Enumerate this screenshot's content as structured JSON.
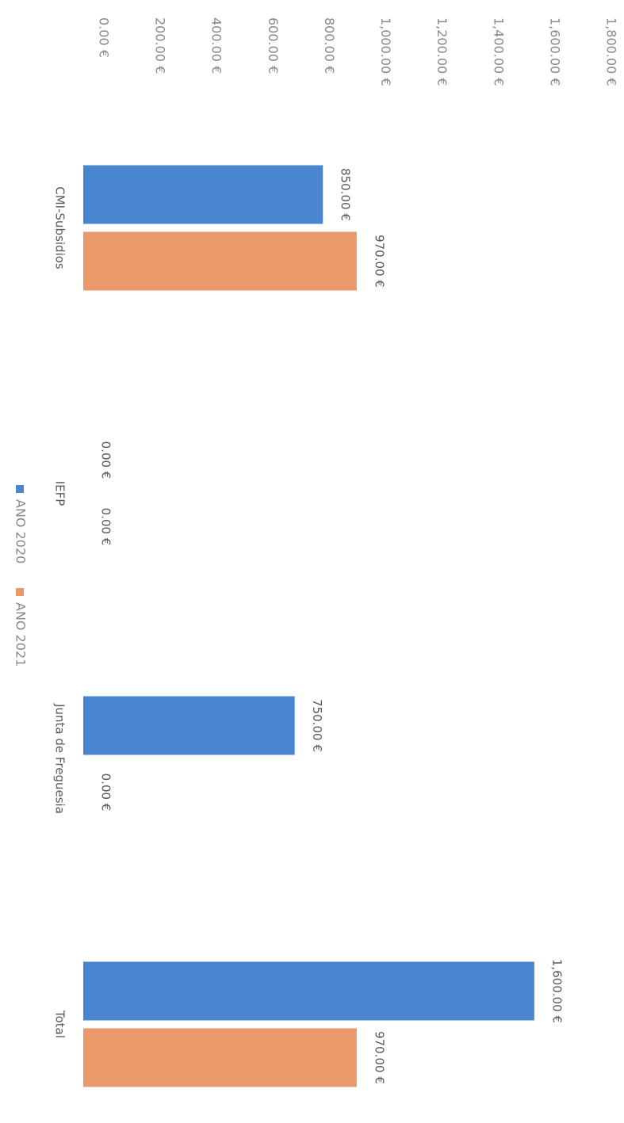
{
  "chart_data": {
    "type": "bar",
    "categories": [
      "CMI-Subsidios",
      "IEFP",
      "Junta de Freguesia",
      "Total"
    ],
    "series": [
      {
        "name": "ANO 2020",
        "color": "#4a86d0",
        "values": [
          850,
          0,
          750,
          1600
        ],
        "value_labels": [
          "850.00 €",
          "0.00 €",
          "750.00 €",
          "1,600.00 €"
        ]
      },
      {
        "name": "ANO 2021",
        "color": "#ea9a6a",
        "values": [
          970,
          0,
          0,
          970
        ],
        "value_labels": [
          "970.00 €",
          "0.00 €",
          "0.00 €",
          "970.00 €"
        ]
      }
    ],
    "ylim": [
      0,
      1800
    ],
    "yticks": [
      {
        "value": 0,
        "label": "0.00 €"
      },
      {
        "value": 200,
        "label": "200.00 €"
      },
      {
        "value": 400,
        "label": "400.00 €"
      },
      {
        "value": 600,
        "label": "600.00 €"
      },
      {
        "value": 800,
        "label": "800.00 €"
      },
      {
        "value": 1000,
        "label": "1,000.00 €"
      },
      {
        "value": 1200,
        "label": "1,200.00 €"
      },
      {
        "value": 1400,
        "label": "1,400.00 €"
      },
      {
        "value": 1600,
        "label": "1,600.00 €"
      },
      {
        "value": 1800,
        "label": "1,800.00 €"
      }
    ],
    "grid": false,
    "legend": "bottom"
  }
}
